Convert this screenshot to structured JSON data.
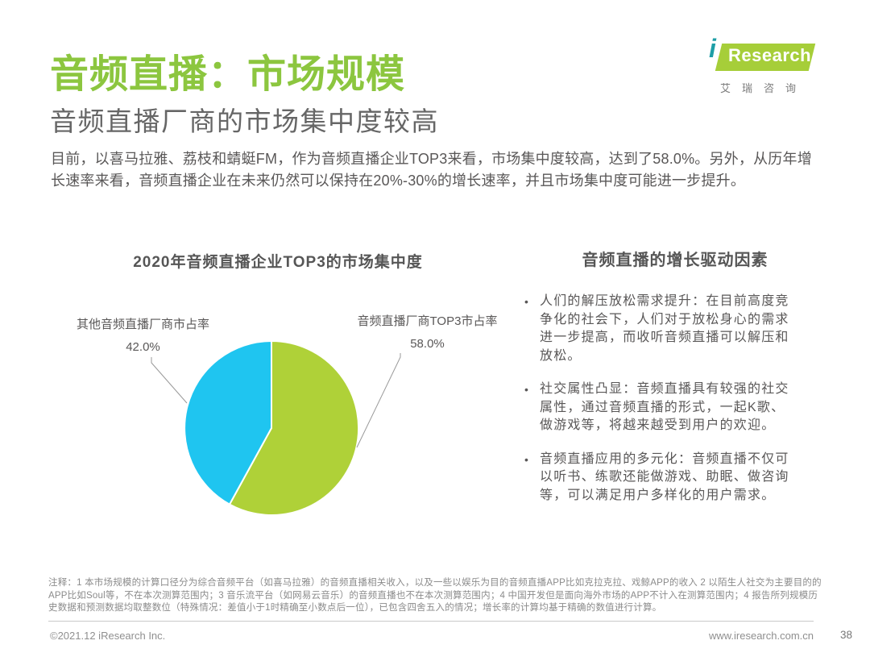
{
  "page": {
    "title": "音频直播：市场规模",
    "subtitle": "音频直播厂商的市场集中度较高",
    "intro": "目前，以喜马拉雅、荔枝和蜻蜓FM，作为音频直播企业TOP3来看，市场集中度较高，达到了58.0%。另外，从历年增长速率来看，音频直播企业在未来仍然可以保持在20%-30%的增长速率，并且市场集中度可能进一步提升。",
    "page_number": "38"
  },
  "logo": {
    "i": "i",
    "name": "Research",
    "cn": "艾瑞咨询",
    "green": "#A6CE39",
    "teal": "#1E9EA6"
  },
  "pie_section": {
    "title": "2020年音频直播企业TOP3的市场集中度",
    "label_other": "其他音频直播厂商市占率",
    "value_other": "42.0%",
    "label_top3": "音频直播厂商TOP3市占率",
    "value_top3": "58.0%"
  },
  "chart_data": {
    "type": "pie",
    "title": "2020年音频直播企业TOP3的市场集中度",
    "slices": [
      {
        "label": "音频直播厂商TOP3市占率",
        "value": 58.0,
        "color": "#AFD138"
      },
      {
        "label": "其他音频直播厂商市占率",
        "value": 42.0,
        "color": "#1FC5F0"
      }
    ],
    "start_angle_deg": 0,
    "direction": "clockwise",
    "legend": "callout-labels",
    "units": "percent"
  },
  "drivers": {
    "title": "音频直播的增长驱动因素",
    "bullets": [
      "人们的解压放松需求提升：在目前高度竞争化的社会下，人们对于放松身心的需求进一步提高，而收听音频直播可以解压和放松。",
      "社交属性凸显：音频直播具有较强的社交属性，通过音频直播的形式，一起K歌、做游戏等，将越来越受到用户的欢迎。",
      "音频直播应用的多元化：音频直播不仅可以听书、练歌还能做游戏、助眠、做咨询等，可以满足用户多样化的用户需求。"
    ]
  },
  "footnote": "注释：1 本市场规模的计算口径分为综合音频平台（如喜马拉雅）的音频直播相关收入，以及一些以娱乐为目的音频直播APP比如克拉克拉、戏鲸APP的收入 2 以陌生人社交为主要目的的APP比如Soul等，不在本次测算范围内；3 音乐流平台（如网易云音乐）的音频直播也不在本次测算范围内；4 中国开发但是面向海外市场的APP不计入在测算范围内；4 报告所列规模历史数据和预测数据均取整数位（特殊情况：差值小于1时精确至小数点后一位），已包含四舍五入的情况；增长率的计算均基于精确的数值进行计算。",
  "footer": {
    "copyright": "©2021.12 iResearch Inc.",
    "website": "www.iresearch.com.cn"
  }
}
